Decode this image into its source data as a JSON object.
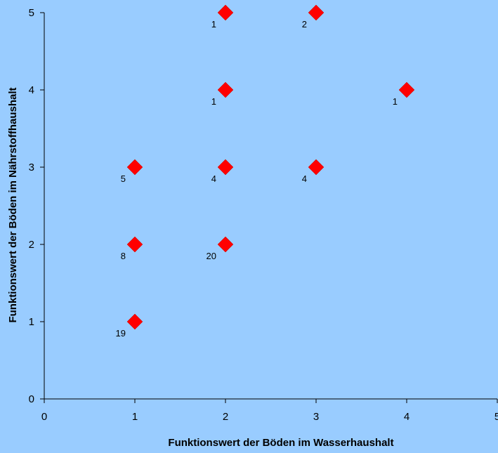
{
  "chart_data": {
    "type": "scatter",
    "title": "",
    "xlabel": "Funktionswert der Böden im Wasserhaushalt",
    "ylabel": "Funktionswert der Böden im Nährstoffhaushalt",
    "xlim": [
      0,
      5
    ],
    "ylim": [
      0,
      5
    ],
    "x_ticks": [
      "0",
      "1",
      "2",
      "3",
      "4",
      "5"
    ],
    "y_ticks": [
      "0",
      "1",
      "2",
      "3",
      "4",
      "5"
    ],
    "grid": false,
    "legend": "none",
    "marker": "diamond",
    "marker_color": "#ff0000",
    "plot_background": "#99ccff",
    "points": [
      {
        "x": 2,
        "y": 5,
        "label": "1"
      },
      {
        "x": 3,
        "y": 5,
        "label": "2"
      },
      {
        "x": 2,
        "y": 4,
        "label": "1"
      },
      {
        "x": 4,
        "y": 4,
        "label": "1"
      },
      {
        "x": 1,
        "y": 3,
        "label": "5"
      },
      {
        "x": 2,
        "y": 3,
        "label": "4"
      },
      {
        "x": 3,
        "y": 3,
        "label": "4"
      },
      {
        "x": 1,
        "y": 2,
        "label": "8"
      },
      {
        "x": 2,
        "y": 2,
        "label": "20"
      },
      {
        "x": 1,
        "y": 1,
        "label": "19"
      }
    ]
  }
}
